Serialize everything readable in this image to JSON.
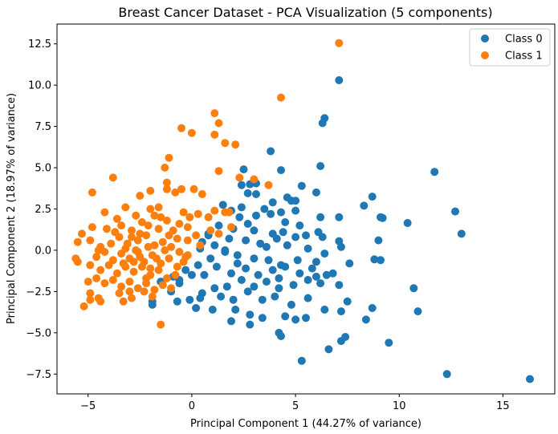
{
  "chart_data": {
    "type": "scatter",
    "title": "Breast Cancer Dataset - PCA Visualization (5 components)",
    "xlabel": "Principal Component 1 (44.27% of variance)",
    "ylabel": "Principal Component 2 (18.97% of variance)",
    "xlim": [
      -6.5,
      17.5
    ],
    "ylim": [
      -8.7,
      13.7
    ],
    "xticks": [
      -5,
      0,
      5,
      10,
      15
    ],
    "xtick_labels": [
      "−5",
      "0",
      "5",
      "10",
      "15"
    ],
    "yticks": [
      -7.5,
      -5.0,
      -2.5,
      0.0,
      2.5,
      5.0,
      7.5,
      10.0,
      12.5
    ],
    "ytick_labels": [
      "−7.5",
      "−5.0",
      "−2.5",
      "0.0",
      "2.5",
      "5.0",
      "7.5",
      "10.0",
      "12.5"
    ],
    "grid": false,
    "legend": "top-right",
    "series": [
      {
        "name": "Class 0",
        "color": "#1f77b4",
        "points": [
          [
            7.1,
            10.3
          ],
          [
            6.4,
            8.0
          ],
          [
            6.3,
            7.7
          ],
          [
            3.8,
            6.0
          ],
          [
            4.3,
            4.85
          ],
          [
            6.2,
            5.1
          ],
          [
            2.5,
            4.9
          ],
          [
            11.7,
            4.75
          ],
          [
            5.3,
            3.9
          ],
          [
            2.4,
            3.95
          ],
          [
            2.8,
            4.0
          ],
          [
            3.1,
            4.05
          ],
          [
            8.7,
            3.25
          ],
          [
            4.6,
            3.2
          ],
          [
            4.8,
            3.0
          ],
          [
            5.0,
            3.0
          ],
          [
            3.9,
            2.9
          ],
          [
            6.0,
            3.5
          ],
          [
            2.7,
            3.45
          ],
          [
            3.1,
            3.4
          ],
          [
            12.7,
            2.35
          ],
          [
            9.1,
            2.0
          ],
          [
            9.2,
            1.95
          ],
          [
            10.4,
            1.65
          ],
          [
            13.0,
            1.0
          ],
          [
            8.3,
            2.7
          ],
          [
            7.1,
            2.0
          ],
          [
            6.2,
            2.0
          ],
          [
            5.0,
            2.4
          ],
          [
            4.3,
            2.3
          ],
          [
            3.5,
            2.5
          ],
          [
            2.4,
            2.6
          ],
          [
            1.5,
            2.75
          ],
          [
            1.9,
            2.4
          ],
          [
            2.3,
            2.0
          ],
          [
            3.1,
            2.1
          ],
          [
            3.8,
            2.2
          ],
          [
            4.5,
            1.7
          ],
          [
            5.2,
            1.5
          ],
          [
            6.1,
            1.1
          ],
          [
            6.3,
            0.8
          ],
          [
            7.1,
            0.55
          ],
          [
            7.2,
            0.2
          ],
          [
            9.0,
            0.6
          ],
          [
            5.5,
            0.9
          ],
          [
            5.0,
            0.8
          ],
          [
            4.4,
            1.1
          ],
          [
            3.9,
            1.0
          ],
          [
            3.0,
            1.2
          ],
          [
            2.7,
            1.6
          ],
          [
            2.0,
            1.3
          ],
          [
            1.3,
            1.5
          ],
          [
            0.8,
            1.0
          ],
          [
            0.5,
            0.5
          ],
          [
            0.4,
            0.1
          ],
          [
            1.1,
            0.3
          ],
          [
            1.8,
            0.7
          ],
          [
            2.6,
            0.6
          ],
          [
            3.3,
            0.4
          ],
          [
            4.1,
            0.7
          ],
          [
            4.6,
            0.3
          ],
          [
            5.6,
            0.1
          ],
          [
            6.4,
            -0.2
          ],
          [
            7.6,
            -0.8
          ],
          [
            8.8,
            -0.55
          ],
          [
            9.1,
            -0.6
          ],
          [
            6.0,
            -0.7
          ],
          [
            5.1,
            -0.6
          ],
          [
            4.3,
            -0.9
          ],
          [
            3.7,
            -0.6
          ],
          [
            3.0,
            -0.5
          ],
          [
            2.2,
            -0.3
          ],
          [
            1.6,
            -0.1
          ],
          [
            0.9,
            -0.5
          ],
          [
            0.3,
            -0.9
          ],
          [
            0.0,
            -1.5
          ],
          [
            0.6,
            -1.5
          ],
          [
            1.2,
            -1.0
          ],
          [
            1.9,
            -1.4
          ],
          [
            2.6,
            -1.1
          ],
          [
            3.2,
            -1.5
          ],
          [
            3.9,
            -1.2
          ],
          [
            4.5,
            -1.0
          ],
          [
            5.2,
            -1.4
          ],
          [
            6.0,
            -1.6
          ],
          [
            6.5,
            -1.5
          ],
          [
            7.1,
            -2.1
          ],
          [
            6.2,
            -2.0
          ],
          [
            5.6,
            -1.8
          ],
          [
            4.9,
            -2.1
          ],
          [
            4.2,
            -2.3
          ],
          [
            3.6,
            -1.9
          ],
          [
            3.0,
            -2.2
          ],
          [
            2.4,
            -1.8
          ],
          [
            1.7,
            -2.2
          ],
          [
            1.1,
            -2.3
          ],
          [
            0.5,
            -2.6
          ],
          [
            -0.1,
            -3.0
          ],
          [
            -0.7,
            -3.1
          ],
          [
            -1.9,
            -3.1
          ],
          [
            -1.9,
            -3.3
          ],
          [
            -1.0,
            -2.5
          ],
          [
            -0.6,
            -2.0
          ],
          [
            -1.5,
            -1.9
          ],
          [
            -0.9,
            -1.6
          ],
          [
            -0.3,
            -1.2
          ],
          [
            0.4,
            -2.9
          ],
          [
            1.4,
            -2.8
          ],
          [
            2.0,
            -3.0
          ],
          [
            2.7,
            -2.5
          ],
          [
            3.4,
            -3.0
          ],
          [
            4.0,
            -2.8
          ],
          [
            4.8,
            -3.3
          ],
          [
            5.6,
            -2.9
          ],
          [
            7.5,
            -3.1
          ],
          [
            6.4,
            -3.6
          ],
          [
            7.2,
            -3.7
          ],
          [
            8.7,
            -3.5
          ],
          [
            10.7,
            -2.3
          ],
          [
            10.9,
            -3.7
          ],
          [
            8.4,
            -4.2
          ],
          [
            4.5,
            -4.0
          ],
          [
            5.0,
            -4.2
          ],
          [
            5.5,
            -4.1
          ],
          [
            3.4,
            -4.1
          ],
          [
            2.8,
            -3.9
          ],
          [
            2.1,
            -3.6
          ],
          [
            1.9,
            -4.3
          ],
          [
            2.8,
            -4.5
          ],
          [
            4.2,
            -5.0
          ],
          [
            4.3,
            -5.2
          ],
          [
            7.4,
            -5.25
          ],
          [
            7.2,
            -5.5
          ],
          [
            9.5,
            -5.6
          ],
          [
            5.3,
            -6.7
          ],
          [
            6.6,
            -6.0
          ],
          [
            12.3,
            -7.5
          ],
          [
            16.3,
            -7.8
          ],
          [
            0.2,
            -3.5
          ],
          [
            1.0,
            -3.6
          ],
          [
            -0.6,
            -1.8
          ],
          [
            0.8,
            0.9
          ],
          [
            1.6,
            0.0
          ],
          [
            2.2,
            -0.8
          ],
          [
            3.6,
            0.2
          ],
          [
            4.2,
            -1.7
          ],
          [
            5.8,
            -1.1
          ],
          [
            6.8,
            -1.4
          ]
        ]
      },
      {
        "name": "Class 1",
        "color": "#ff7f0e",
        "points": [
          [
            7.1,
            12.55
          ],
          [
            4.3,
            9.25
          ],
          [
            1.1,
            8.3
          ],
          [
            1.3,
            7.7
          ],
          [
            1.1,
            7.0
          ],
          [
            0.0,
            7.1
          ],
          [
            -0.5,
            7.4
          ],
          [
            1.6,
            6.5
          ],
          [
            2.1,
            6.4
          ],
          [
            -1.1,
            5.6
          ],
          [
            -1.3,
            5.0
          ],
          [
            1.3,
            4.8
          ],
          [
            2.3,
            4.4
          ],
          [
            3.0,
            4.3
          ],
          [
            3.7,
            3.95
          ],
          [
            -3.8,
            4.4
          ],
          [
            -1.2,
            4.1
          ],
          [
            -1.2,
            3.7
          ],
          [
            -0.5,
            3.7
          ],
          [
            -0.8,
            3.5
          ],
          [
            0.1,
            3.7
          ],
          [
            0.5,
            3.4
          ],
          [
            -2.0,
            3.6
          ],
          [
            -2.5,
            3.3
          ],
          [
            -4.8,
            3.5
          ],
          [
            -3.2,
            2.6
          ],
          [
            -2.0,
            2.5
          ],
          [
            -1.6,
            2.6
          ],
          [
            -0.4,
            2.3
          ],
          [
            0.3,
            2.2
          ],
          [
            1.1,
            2.4
          ],
          [
            1.6,
            2.3
          ],
          [
            1.8,
            2.3
          ],
          [
            -4.2,
            2.3
          ],
          [
            -3.6,
            1.9
          ],
          [
            -2.7,
            2.1
          ],
          [
            -1.8,
            2.1
          ],
          [
            -1.2,
            1.8
          ],
          [
            -0.6,
            1.6
          ],
          [
            -0.2,
            1.4
          ],
          [
            0.9,
            1.2
          ],
          [
            1.3,
            1.0
          ],
          [
            1.9,
            1.4
          ],
          [
            -5.3,
            1.0
          ],
          [
            -4.8,
            1.4
          ],
          [
            -4.1,
            1.3
          ],
          [
            -3.4,
            1.5
          ],
          [
            -2.9,
            1.2
          ],
          [
            -2.5,
            1.0
          ],
          [
            -2.1,
            1.5
          ],
          [
            -1.6,
            1.3
          ],
          [
            -1.1,
            0.9
          ],
          [
            -0.7,
            0.7
          ],
          [
            -0.2,
            0.6
          ],
          [
            0.4,
            0.3
          ],
          [
            -5.5,
            0.5
          ],
          [
            -4.9,
            0.6
          ],
          [
            -4.4,
            0.2
          ],
          [
            -3.9,
            0.4
          ],
          [
            -3.5,
            0.8
          ],
          [
            -3.1,
            0.4
          ],
          [
            -2.6,
            0.6
          ],
          [
            -2.2,
            0.9
          ],
          [
            -1.8,
            0.3
          ],
          [
            -1.4,
            0.5
          ],
          [
            -1.0,
            0.2
          ],
          [
            -0.6,
            -0.1
          ],
          [
            -0.3,
            -0.4
          ],
          [
            -5.6,
            -0.5
          ],
          [
            -5.5,
            -0.7
          ],
          [
            -4.6,
            -0.4
          ],
          [
            -4.2,
            -0.1
          ],
          [
            -3.8,
            -0.6
          ],
          [
            -3.4,
            -0.2
          ],
          [
            -3.0,
            -0.5
          ],
          [
            -2.6,
            -0.1
          ],
          [
            -2.3,
            -0.7
          ],
          [
            -1.9,
            -0.3
          ],
          [
            -1.5,
            -0.8
          ],
          [
            -1.1,
            -0.5
          ],
          [
            -0.7,
            -1.0
          ],
          [
            -0.4,
            -0.7
          ],
          [
            -4.9,
            -0.9
          ],
          [
            -4.4,
            -1.2
          ],
          [
            -4.0,
            -0.9
          ],
          [
            -3.6,
            -1.4
          ],
          [
            -3.2,
            -1.0
          ],
          [
            -2.8,
            -1.3
          ],
          [
            -2.4,
            -1.0
          ],
          [
            -2.0,
            -1.5
          ],
          [
            -1.6,
            -1.2
          ],
          [
            -1.2,
            -1.7
          ],
          [
            -0.8,
            -1.5
          ],
          [
            -5.0,
            -1.9
          ],
          [
            -4.6,
            -1.7
          ],
          [
            -4.2,
            -2.0
          ],
          [
            -3.8,
            -1.8
          ],
          [
            -3.4,
            -2.2
          ],
          [
            -3.0,
            -1.9
          ],
          [
            -2.6,
            -2.3
          ],
          [
            -2.2,
            -2.0
          ],
          [
            -1.8,
            -2.4
          ],
          [
            -1.4,
            -2.1
          ],
          [
            -4.9,
            -2.6
          ],
          [
            -4.5,
            -2.9
          ],
          [
            -4.4,
            -3.1
          ],
          [
            -3.5,
            -2.6
          ],
          [
            -3.3,
            -3.1
          ],
          [
            -2.9,
            -2.9
          ],
          [
            -2.3,
            -2.5
          ],
          [
            -1.9,
            -2.8
          ],
          [
            -4.9,
            -3.0
          ],
          [
            -5.2,
            -3.4
          ],
          [
            -1.5,
            -4.5
          ],
          [
            -2.7,
            0.0
          ],
          [
            -2.5,
            -0.4
          ],
          [
            -2.1,
            0.2
          ],
          [
            -1.7,
            -0.5
          ],
          [
            -1.3,
            0.0
          ],
          [
            -2.9,
            0.8
          ],
          [
            -3.3,
            -0.8
          ],
          [
            -2.0,
            -1.1
          ],
          [
            -0.9,
            1.2
          ],
          [
            -0.1,
            2.0
          ],
          [
            -3.7,
            1.1
          ],
          [
            -2.4,
            1.7
          ],
          [
            -1.5,
            2.0
          ],
          [
            -4.5,
            0.0
          ],
          [
            -3.0,
            -2.5
          ],
          [
            -2.2,
            -1.7
          ],
          [
            -1.0,
            -2.3
          ],
          [
            -0.2,
            -0.3
          ],
          [
            0.2,
            0.9
          ],
          [
            0.8,
            2.0
          ],
          [
            -3.2,
            0.1
          ],
          [
            -2.8,
            -0.7
          ]
        ]
      }
    ]
  }
}
